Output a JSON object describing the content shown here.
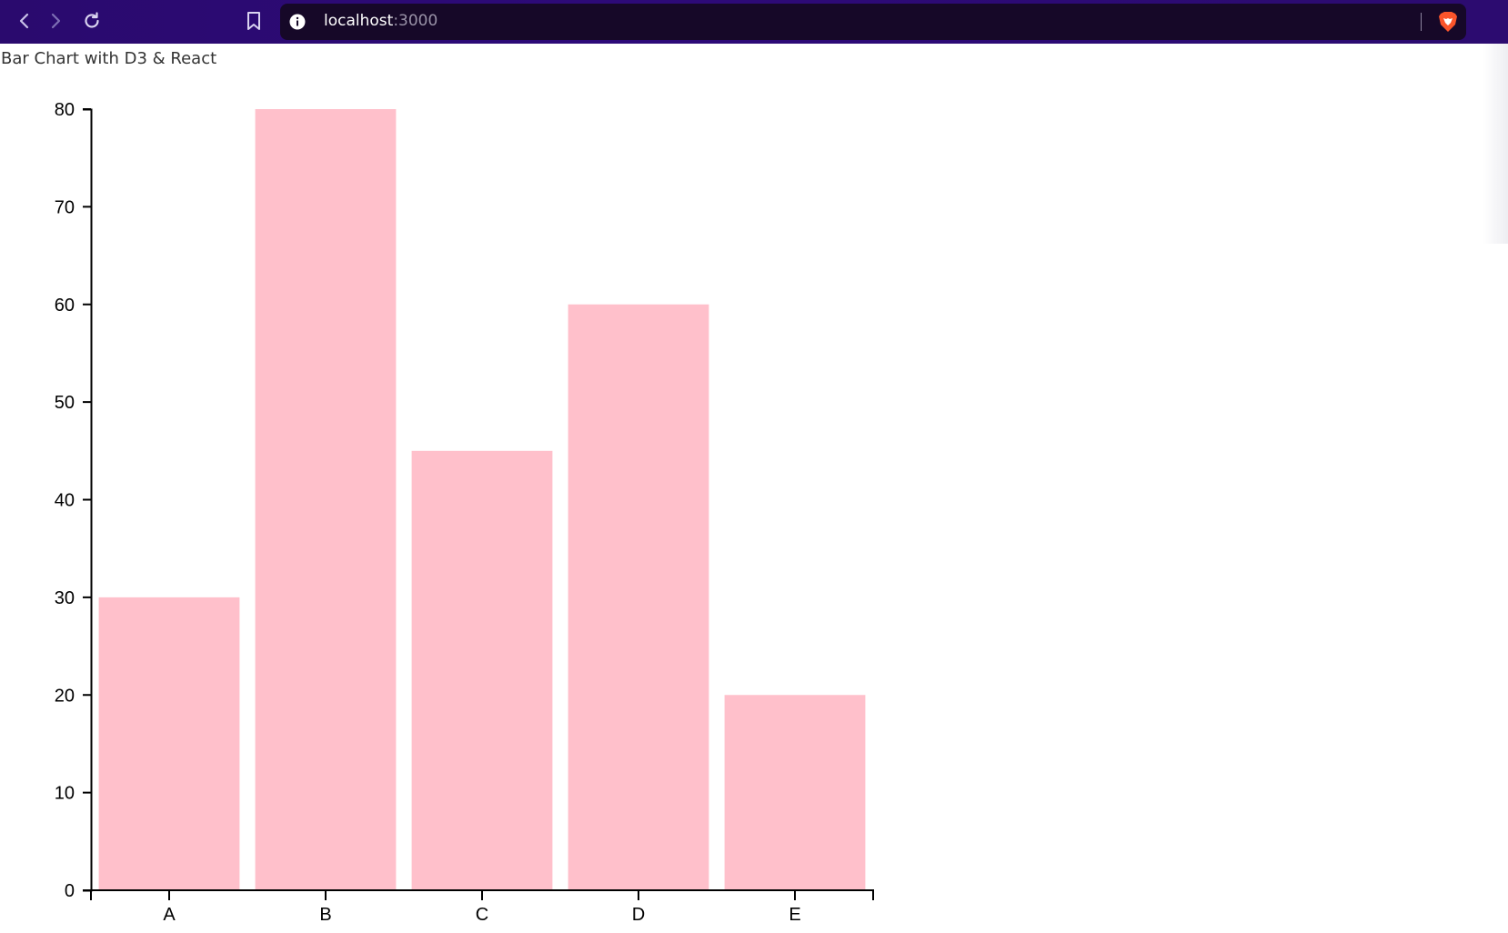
{
  "browser": {
    "url_host": "localhost",
    "url_port": ":3000",
    "toolbar_color": "#2c0b74"
  },
  "page": {
    "heading": "Bar Chart with D3 & React"
  },
  "chart_data": {
    "type": "bar",
    "title": "",
    "xlabel": "",
    "ylabel": "",
    "categories": [
      "A",
      "B",
      "C",
      "D",
      "E"
    ],
    "values": [
      30,
      80,
      45,
      60,
      20
    ],
    "ylim": [
      0,
      80
    ],
    "yticks": [
      0,
      10,
      20,
      30,
      40,
      50,
      60,
      70,
      80
    ],
    "bar_color": "#ffc0cb",
    "grid": false,
    "legend": "none"
  }
}
